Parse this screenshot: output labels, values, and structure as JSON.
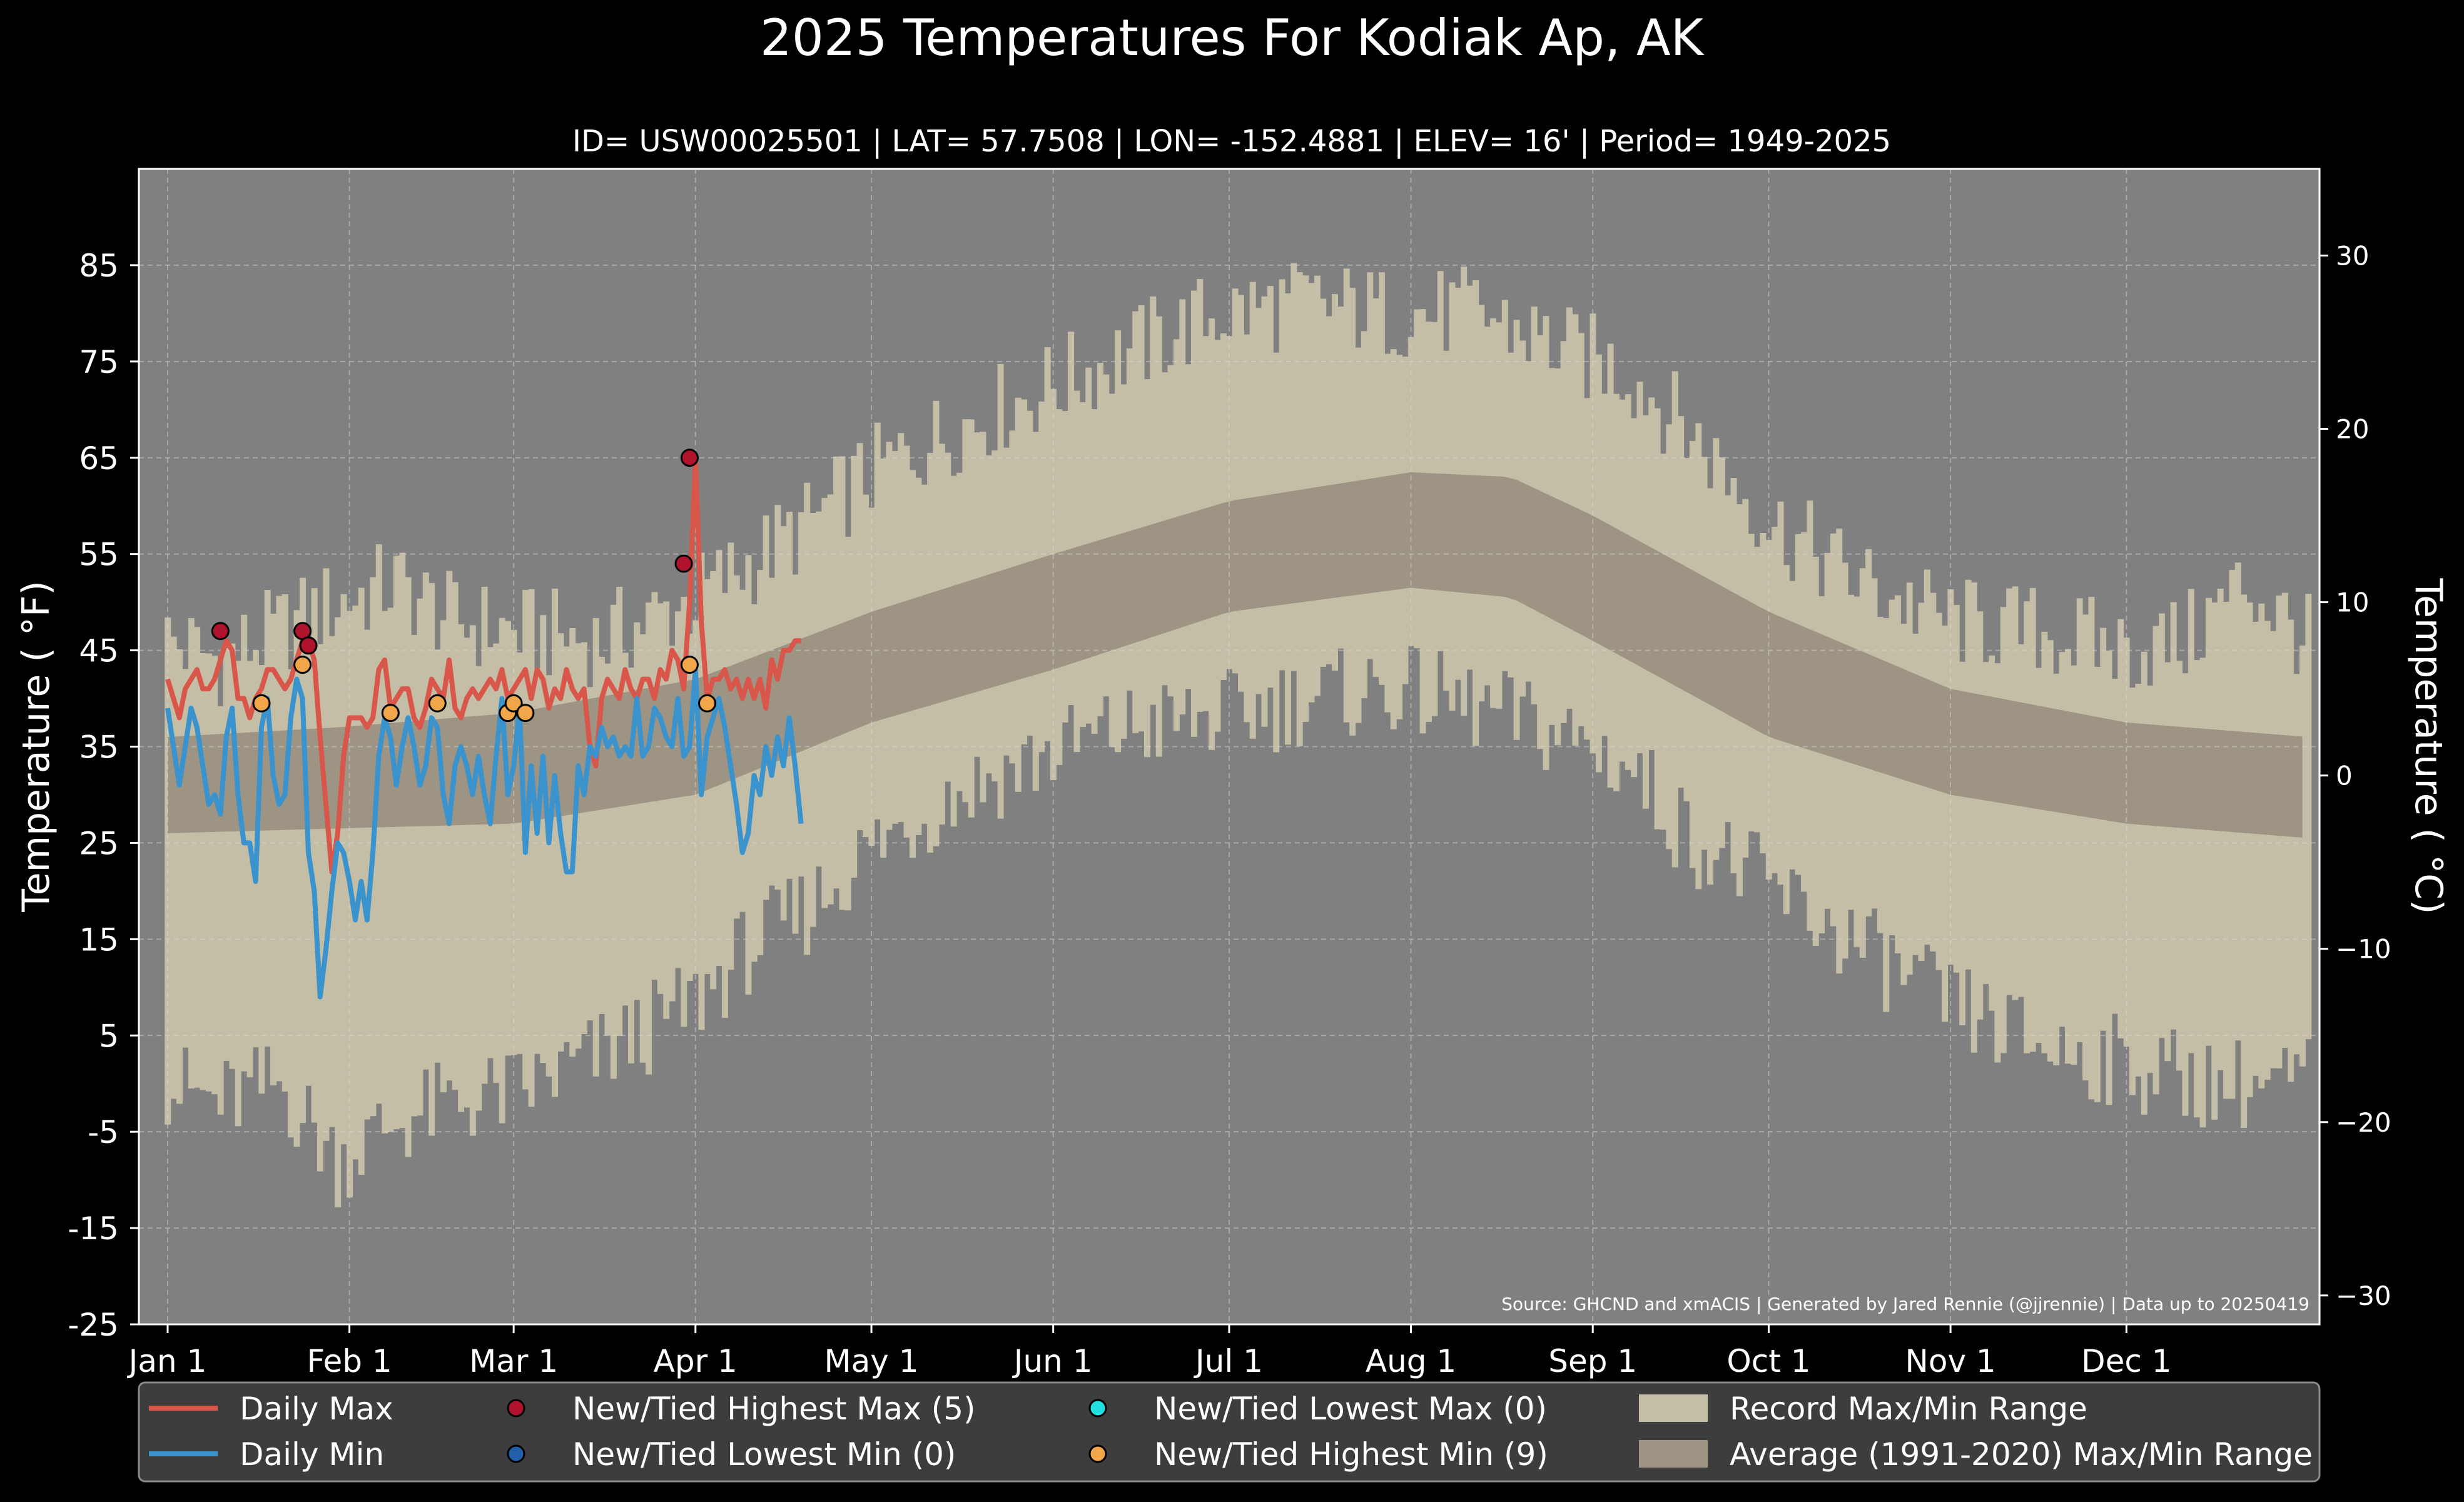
{
  "colors": {
    "background": "#000000",
    "plot_background": "#808080",
    "record_range": "#c5bea6",
    "average_range": "#9d9483",
    "daily_max": "#d9574a",
    "daily_min": "#3a93cd",
    "highest_max_marker": "#b0142c",
    "lowest_min_marker": "#2160a8",
    "lowest_max_marker": "#22e0e0",
    "highest_min_marker": "#f2a64a",
    "legend_background": "#3d3d3d"
  },
  "chart_data": {
    "type": "line",
    "title": "2025 Temperatures For Kodiak Ap, AK",
    "subtitle": "ID= USW00025501 | LAT= 57.7508 | LON= -152.4881 | ELEV= 16' | Period= 1949-2025",
    "ylabel": "Temperature ( °F)",
    "ylabel_right": "Temperature ( °C)",
    "ylim": [
      -25,
      95
    ],
    "yticks": [
      -25,
      -15,
      -5,
      5,
      15,
      25,
      35,
      45,
      55,
      65,
      75,
      85
    ],
    "ytick_labels": [
      "-25",
      "-15",
      "-5",
      "5",
      "15",
      "25",
      "35",
      "45",
      "55",
      "65",
      "75",
      "85"
    ],
    "yticks_right": [
      -30,
      -20,
      -10,
      0,
      10,
      20,
      30
    ],
    "ytick_labels_right": [
      "−30",
      "−20",
      "−10",
      "0",
      "10",
      "20",
      "30"
    ],
    "x_day_range": [
      1,
      366
    ],
    "xticks": [
      1,
      32,
      60,
      91,
      121,
      152,
      182,
      213,
      244,
      274,
      305,
      335
    ],
    "xtick_labels": [
      "Jan 1",
      "Feb 1",
      "Mar 1",
      "Apr 1",
      "May 1",
      "Jun 1",
      "Jul 1",
      "Aug 1",
      "Sep 1",
      "Oct 1",
      "Nov 1",
      "Dec 1"
    ],
    "grid": true,
    "source_note": "Source: GHCND and xmACIS | Generated by Jared Rennie (@jjrennie) | Data up to 20250419",
    "record_max_anchors": [
      [
        1,
        46
      ],
      [
        10,
        44
      ],
      [
        20,
        47
      ],
      [
        30,
        50
      ],
      [
        40,
        52
      ],
      [
        50,
        48
      ],
      [
        60,
        47
      ],
      [
        75,
        46
      ],
      [
        90,
        50
      ],
      [
        100,
        54
      ],
      [
        110,
        58
      ],
      [
        120,
        63
      ],
      [
        135,
        68
      ],
      [
        150,
        72
      ],
      [
        165,
        76
      ],
      [
        180,
        80
      ],
      [
        195,
        81
      ],
      [
        210,
        80
      ],
      [
        225,
        80
      ],
      [
        240,
        76
      ],
      [
        250,
        74
      ],
      [
        260,
        68
      ],
      [
        275,
        58
      ],
      [
        290,
        52
      ],
      [
        305,
        48
      ],
      [
        320,
        47
      ],
      [
        335,
        45
      ],
      [
        345,
        46
      ],
      [
        355,
        52
      ],
      [
        366,
        46
      ]
    ],
    "record_min_anchors": [
      [
        1,
        0
      ],
      [
        10,
        -2
      ],
      [
        20,
        0
      ],
      [
        30,
        -8
      ],
      [
        40,
        -4
      ],
      [
        50,
        -2
      ],
      [
        60,
        -1
      ],
      [
        75,
        3
      ],
      [
        90,
        8
      ],
      [
        100,
        14
      ],
      [
        110,
        18
      ],
      [
        120,
        24
      ],
      [
        135,
        30
      ],
      [
        150,
        34
      ],
      [
        165,
        37
      ],
      [
        180,
        38
      ],
      [
        195,
        40
      ],
      [
        210,
        41
      ],
      [
        225,
        39
      ],
      [
        240,
        36
      ],
      [
        250,
        33
      ],
      [
        260,
        26
      ],
      [
        275,
        20
      ],
      [
        290,
        14
      ],
      [
        305,
        8
      ],
      [
        320,
        4
      ],
      [
        335,
        2
      ],
      [
        350,
        0
      ],
      [
        366,
        0
      ]
    ],
    "average_range": {
      "max": [
        [
          1,
          36
        ],
        [
          30,
          37
        ],
        [
          60,
          38.5
        ],
        [
          91,
          42
        ],
        [
          121,
          49
        ],
        [
          152,
          55
        ],
        [
          182,
          60.5
        ],
        [
          213,
          63.5
        ],
        [
          230,
          63
        ],
        [
          244,
          59
        ],
        [
          274,
          49
        ],
        [
          305,
          41
        ],
        [
          335,
          37.5
        ],
        [
          366,
          36
        ]
      ],
      "min": [
        [
          1,
          26
        ],
        [
          30,
          26.5
        ],
        [
          60,
          27
        ],
        [
          91,
          30
        ],
        [
          121,
          37.5
        ],
        [
          152,
          43
        ],
        [
          182,
          49
        ],
        [
          213,
          51.5
        ],
        [
          230,
          50.5
        ],
        [
          244,
          46
        ],
        [
          274,
          36
        ],
        [
          305,
          30
        ],
        [
          335,
          27
        ],
        [
          366,
          25.5
        ]
      ]
    },
    "series": [
      {
        "name": "Daily Max",
        "x": [
          1,
          2,
          3,
          4,
          5,
          6,
          7,
          8,
          9,
          10,
          11,
          12,
          13,
          14,
          15,
          16,
          17,
          18,
          19,
          20,
          21,
          22,
          23,
          24,
          25,
          26,
          27,
          28,
          29,
          30,
          31,
          32,
          33,
          34,
          35,
          36,
          37,
          38,
          39,
          40,
          41,
          42,
          43,
          44,
          45,
          46,
          47,
          48,
          49,
          50,
          51,
          52,
          53,
          54,
          55,
          56,
          57,
          58,
          59,
          60,
          61,
          62,
          63,
          64,
          65,
          66,
          67,
          68,
          69,
          70,
          71,
          72,
          73,
          74,
          75,
          76,
          77,
          78,
          79,
          80,
          81,
          82,
          83,
          84,
          85,
          86,
          87,
          88,
          89,
          90,
          91,
          92,
          93,
          94,
          95,
          96,
          97,
          98,
          99,
          100,
          101,
          102,
          103,
          104,
          105,
          106,
          107,
          108,
          109
        ],
        "values": [
          42,
          40,
          38,
          41,
          42,
          43,
          41,
          41,
          42,
          44,
          46,
          45,
          40,
          40,
          38,
          40,
          41,
          43,
          43,
          42,
          41,
          42,
          44,
          46,
          46,
          44,
          36,
          29,
          22,
          26,
          34,
          38,
          38,
          38,
          37,
          38,
          43,
          44,
          39,
          40,
          41,
          41,
          38,
          37,
          39,
          42,
          41,
          40,
          44,
          39,
          38,
          40,
          41,
          40,
          41,
          42,
          41,
          43,
          40,
          41,
          42,
          43,
          40,
          43,
          42,
          39,
          41,
          40,
          43,
          41,
          40,
          41,
          35,
          33,
          40,
          42,
          41,
          40,
          43,
          41,
          40,
          42,
          42,
          40,
          43,
          42,
          45,
          44,
          41,
          50,
          65,
          48,
          40,
          42,
          42,
          43,
          41,
          42,
          40,
          42,
          40,
          42,
          39,
          44,
          42,
          45,
          45,
          46,
          46
        ],
        "color": "#d9574a"
      },
      {
        "name": "Daily Min",
        "x": [
          1,
          2,
          3,
          4,
          5,
          6,
          7,
          8,
          9,
          10,
          11,
          12,
          13,
          14,
          15,
          16,
          17,
          18,
          19,
          20,
          21,
          22,
          23,
          24,
          25,
          26,
          27,
          28,
          29,
          30,
          31,
          32,
          33,
          34,
          35,
          36,
          37,
          38,
          39,
          40,
          41,
          42,
          43,
          44,
          45,
          46,
          47,
          48,
          49,
          50,
          51,
          52,
          53,
          54,
          55,
          56,
          57,
          58,
          59,
          60,
          61,
          62,
          63,
          64,
          65,
          66,
          67,
          68,
          69,
          70,
          71,
          72,
          73,
          74,
          75,
          76,
          77,
          78,
          79,
          80,
          81,
          82,
          83,
          84,
          85,
          86,
          87,
          88,
          89,
          90,
          91,
          92,
          93,
          94,
          95,
          96,
          97,
          98,
          99,
          100,
          101,
          102,
          103,
          104,
          105,
          106,
          107,
          108,
          109
        ],
        "values": [
          39,
          35,
          31,
          35,
          39,
          37,
          33,
          29,
          30,
          28,
          36,
          39,
          30,
          25,
          25,
          21,
          37,
          40,
          32,
          29,
          30,
          38,
          42,
          40,
          24,
          20,
          9,
          14,
          20,
          25,
          24,
          21,
          17,
          21,
          17,
          24,
          34,
          38,
          36,
          31,
          35,
          38,
          35,
          31,
          33,
          38,
          37,
          30,
          27,
          33,
          35,
          33,
          30,
          34,
          30,
          27,
          34,
          40,
          30,
          33,
          39,
          24,
          33,
          26,
          34,
          25,
          32,
          26,
          22,
          22,
          33,
          30,
          35,
          34,
          37,
          35,
          36,
          34,
          35,
          34,
          40,
          34,
          35,
          39,
          38,
          36,
          35,
          40,
          34,
          35,
          43,
          30,
          36,
          38,
          40,
          37,
          33,
          29,
          24,
          26,
          32,
          30,
          35,
          32,
          36,
          33,
          38,
          33,
          27
        ],
        "color": "#3a93cd"
      }
    ],
    "records": {
      "highest_max": [
        [
          10,
          47
        ],
        [
          24,
          47
        ],
        [
          25,
          45.5
        ],
        [
          89,
          54
        ],
        [
          90,
          65
        ]
      ],
      "highest_min": [
        [
          17,
          39.5
        ],
        [
          24,
          43.5
        ],
        [
          39,
          38.5
        ],
        [
          47,
          39.5
        ],
        [
          59,
          38.5
        ],
        [
          60,
          39.5
        ],
        [
          62,
          38.5
        ],
        [
          90,
          43.5
        ],
        [
          93,
          39.5
        ]
      ],
      "lowest_max": [],
      "lowest_min": []
    },
    "legend": {
      "placement": "bottom",
      "items": [
        {
          "label": "Daily Max",
          "kind": "line",
          "color": "#d9574a"
        },
        {
          "label": "Daily Min",
          "kind": "line",
          "color": "#3a93cd"
        },
        {
          "label": "New/Tied Highest Max (5)",
          "kind": "marker",
          "color": "#b0142c"
        },
        {
          "label": "New/Tied Lowest Min (0)",
          "kind": "marker",
          "color": "#2160a8"
        },
        {
          "label": "New/Tied Lowest Max (0)",
          "kind": "marker",
          "color": "#22e0e0"
        },
        {
          "label": "New/Tied Highest Min (9)",
          "kind": "marker",
          "color": "#f2a64a"
        },
        {
          "label": "Record Max/Min Range",
          "kind": "patch",
          "color": "#c5bea6"
        },
        {
          "label": "Average (1991-2020) Max/Min Range",
          "kind": "patch",
          "color": "#9d9483"
        }
      ]
    }
  }
}
